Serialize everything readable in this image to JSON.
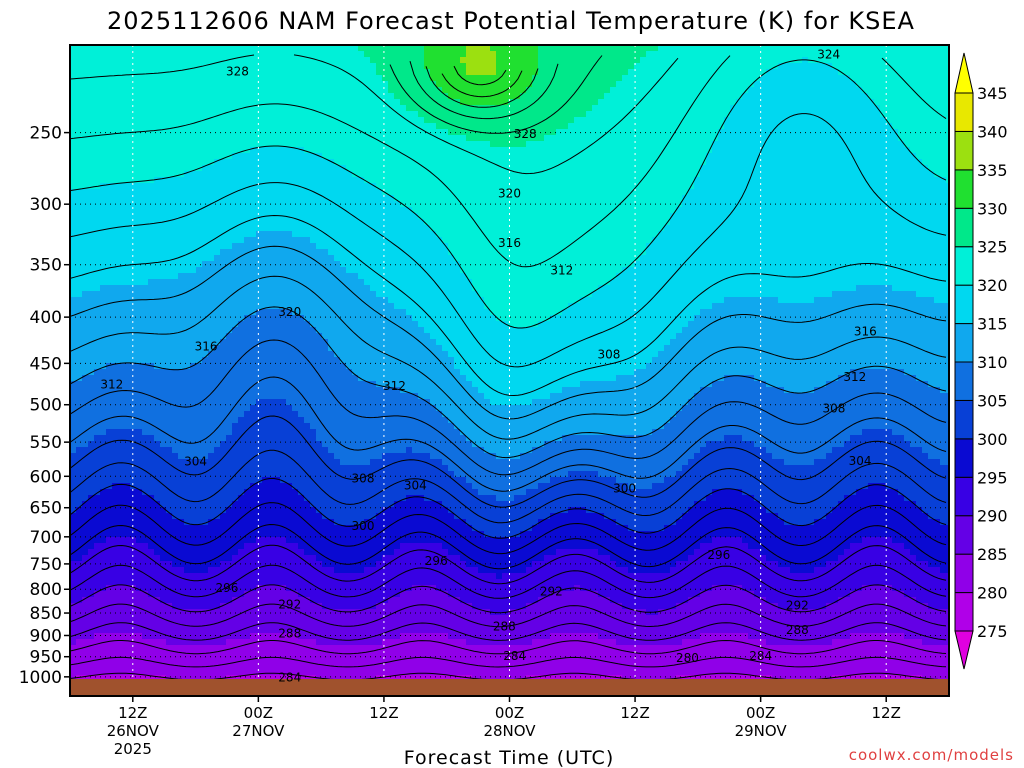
{
  "chart_data": {
    "type": "heatmap",
    "title": "2025112606 NAM Forecast Potential Temperature (K) for KSEA",
    "xlabel": "Forecast Time (UTC)",
    "ylabel": "",
    "credit": "coolwx.com/models",
    "x_range_hours": [
      6,
      90
    ],
    "y_range_hpa": [
      1050,
      200
    ],
    "y_ticks": [
      1000,
      950,
      900,
      850,
      800,
      750,
      700,
      650,
      600,
      550,
      500,
      450,
      400,
      350,
      300,
      250
    ],
    "x_ticks": [
      {
        "hour": 12,
        "lines": [
          "12Z",
          "26NOV",
          "2025"
        ]
      },
      {
        "hour": 24,
        "lines": [
          "00Z",
          "27NOV"
        ]
      },
      {
        "hour": 36,
        "lines": [
          "12Z",
          ""
        ]
      },
      {
        "hour": 48,
        "lines": [
          "00Z",
          "28NOV"
        ]
      },
      {
        "hour": 60,
        "lines": [
          "12Z",
          ""
        ]
      },
      {
        "hour": 72,
        "lines": [
          "00Z",
          "29NOV"
        ]
      },
      {
        "hour": 84,
        "lines": [
          "12Z",
          ""
        ]
      }
    ],
    "colorbar": {
      "levels": [
        275,
        280,
        285,
        290,
        295,
        300,
        305,
        310,
        315,
        320,
        325,
        330,
        335,
        340,
        345
      ],
      "colors": [
        "#e000e0",
        "#b000e8",
        "#9000e8",
        "#6400e6",
        "#3800e4",
        "#0a0ad2",
        "#0840d6",
        "#1070e0",
        "#10a8ee",
        "#00d8f0",
        "#00f0d8",
        "#00e88a",
        "#20e030",
        "#9ce010",
        "#e8e800",
        "#ffff00"
      ]
    },
    "contour_labels": [
      {
        "text": "328",
        "hour": 22,
        "p": 214
      },
      {
        "text": "324",
        "hour": 78.5,
        "p": 205
      },
      {
        "text": "328",
        "hour": 49.5,
        "p": 251
      },
      {
        "text": "320",
        "hour": 48,
        "p": 292
      },
      {
        "text": "316",
        "hour": 48,
        "p": 331
      },
      {
        "text": "312",
        "hour": 53,
        "p": 355
      },
      {
        "text": "320",
        "hour": 27,
        "p": 395
      },
      {
        "text": "316",
        "hour": 82,
        "p": 415
      },
      {
        "text": "316",
        "hour": 19,
        "p": 431
      },
      {
        "text": "308",
        "hour": 57.5,
        "p": 440
      },
      {
        "text": "312",
        "hour": 10,
        "p": 475
      },
      {
        "text": "312",
        "hour": 37,
        "p": 477
      },
      {
        "text": "312",
        "hour": 81,
        "p": 466
      },
      {
        "text": "308",
        "hour": 79,
        "p": 505
      },
      {
        "text": "304",
        "hour": 18,
        "p": 578
      },
      {
        "text": "304",
        "hour": 81.5,
        "p": 577
      },
      {
        "text": "308",
        "hour": 34,
        "p": 603
      },
      {
        "text": "304",
        "hour": 39,
        "p": 614
      },
      {
        "text": "300",
        "hour": 59,
        "p": 619
      },
      {
        "text": "300",
        "hour": 34,
        "p": 681
      },
      {
        "text": "296",
        "hour": 41,
        "p": 744
      },
      {
        "text": "296",
        "hour": 68,
        "p": 733
      },
      {
        "text": "296",
        "hour": 21,
        "p": 797
      },
      {
        "text": "292",
        "hour": 52,
        "p": 805
      },
      {
        "text": "292",
        "hour": 27,
        "p": 832
      },
      {
        "text": "292",
        "hour": 75.5,
        "p": 834
      },
      {
        "text": "288",
        "hour": 47.5,
        "p": 880
      },
      {
        "text": "288",
        "hour": 27,
        "p": 896
      },
      {
        "text": "288",
        "hour": 75.5,
        "p": 887
      },
      {
        "text": "284",
        "hour": 48.5,
        "p": 948
      },
      {
        "text": "284",
        "hour": 72,
        "p": 948
      },
      {
        "text": "280",
        "hour": 65,
        "p": 953
      },
      {
        "text": "284",
        "hour": 27,
        "p": 1002
      }
    ]
  }
}
